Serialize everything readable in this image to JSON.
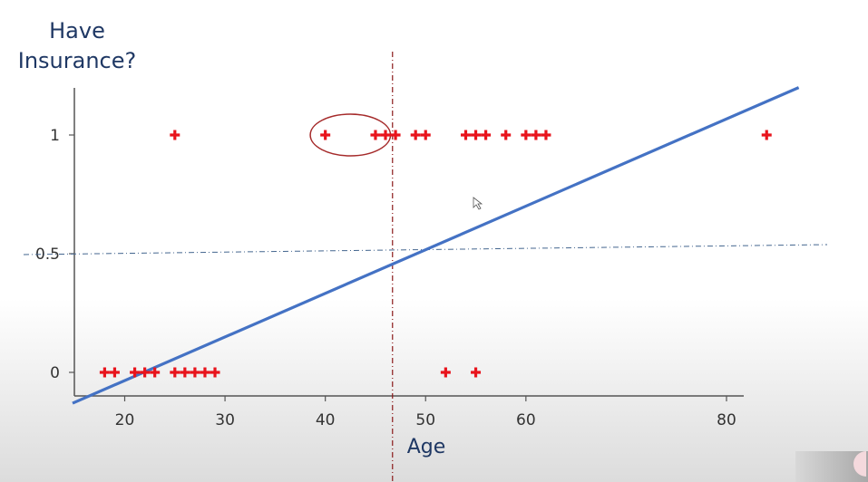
{
  "chart_data": {
    "type": "scatter",
    "ylabel_lines": [
      "Have",
      "Insurance?"
    ],
    "xlabel": "Age",
    "xlim": [
      15,
      86
    ],
    "ylim": [
      -0.1,
      1.2
    ],
    "xticks": [
      20,
      30,
      40,
      50,
      60,
      80
    ],
    "xtick_labels": [
      "20",
      "30",
      "40",
      "50",
      "60",
      "80"
    ],
    "yticks": [
      0,
      0.5,
      1
    ],
    "ytick_labels": [
      "0",
      "0.5",
      "1"
    ],
    "series": [
      {
        "marker": "plus",
        "color": "#e8141c",
        "points": [
          {
            "x": 18,
            "y": 0
          },
          {
            "x": 19,
            "y": 0
          },
          {
            "x": 21,
            "y": 0
          },
          {
            "x": 22,
            "y": 0
          },
          {
            "x": 23,
            "y": 0
          },
          {
            "x": 25,
            "y": 0
          },
          {
            "x": 26,
            "y": 0
          },
          {
            "x": 27,
            "y": 0
          },
          {
            "x": 28,
            "y": 0
          },
          {
            "x": 29,
            "y": 0
          },
          {
            "x": 52,
            "y": 0
          },
          {
            "x": 55,
            "y": 0
          },
          {
            "x": 25,
            "y": 1
          },
          {
            "x": 40,
            "y": 1
          },
          {
            "x": 45,
            "y": 1
          },
          {
            "x": 46,
            "y": 1
          },
          {
            "x": 47,
            "y": 1
          },
          {
            "x": 49,
            "y": 1
          },
          {
            "x": 50,
            "y": 1
          },
          {
            "x": 54,
            "y": 1
          },
          {
            "x": 55,
            "y": 1
          },
          {
            "x": 56,
            "y": 1
          },
          {
            "x": 58,
            "y": 1
          },
          {
            "x": 60,
            "y": 1
          },
          {
            "x": 61,
            "y": 1
          },
          {
            "x": 62,
            "y": 1
          },
          {
            "x": 84,
            "y": 1
          }
        ]
      }
    ],
    "fit_line": {
      "color": "#4472c4",
      "x": [
        14.8,
        87.2
      ],
      "y": [
        -0.13,
        1.2
      ]
    },
    "threshold_line": {
      "y": 0.5,
      "color": "#44668f",
      "style": "dash-dot"
    },
    "decision_line": {
      "x": 46.7,
      "color": "#8b1a1a",
      "style": "dash-dot"
    },
    "highlight_ellipse": {
      "color": "#a52a2a",
      "x_range": [
        38.5,
        46.5
      ],
      "y": 1
    }
  }
}
